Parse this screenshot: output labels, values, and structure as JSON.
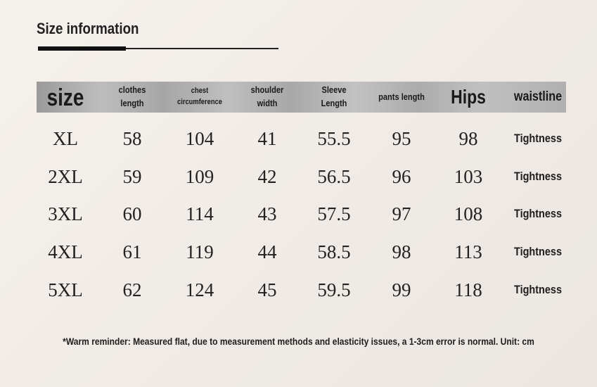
{
  "title": "Size information",
  "headers": [
    {
      "lines": [
        "size"
      ],
      "style": "size"
    },
    {
      "lines": [
        "clothes",
        "length"
      ],
      "style": "small"
    },
    {
      "lines": [
        "chest",
        "circumference"
      ],
      "style": "tiny"
    },
    {
      "lines": [
        "shoulder",
        "width"
      ],
      "style": "small"
    },
    {
      "lines": [
        "Sleeve",
        "Length"
      ],
      "style": "small"
    },
    {
      "lines": [
        "pants length"
      ],
      "style": "small"
    },
    {
      "lines": [
        "Hips"
      ],
      "style": "hips"
    },
    {
      "lines": [
        "waistline"
      ],
      "style": "waist"
    }
  ],
  "rows": [
    [
      "XL",
      "58",
      "104",
      "41",
      "55.5",
      "95",
      "98",
      "Tightness"
    ],
    [
      "2XL",
      "59",
      "109",
      "42",
      "56.5",
      "96",
      "103",
      "Tightness"
    ],
    [
      "3XL",
      "60",
      "114",
      "43",
      "57.5",
      "97",
      "108",
      "Tightness"
    ],
    [
      "4XL",
      "61",
      "119",
      "44",
      "58.5",
      "98",
      "113",
      "Tightness"
    ],
    [
      "5XL",
      "62",
      "124",
      "45",
      "59.5",
      "99",
      "118",
      "Tightness"
    ]
  ],
  "note": "*Warm reminder: Measured flat, due to measurement methods and elasticity issues, a 1-3cm error is normal. Unit: cm"
}
